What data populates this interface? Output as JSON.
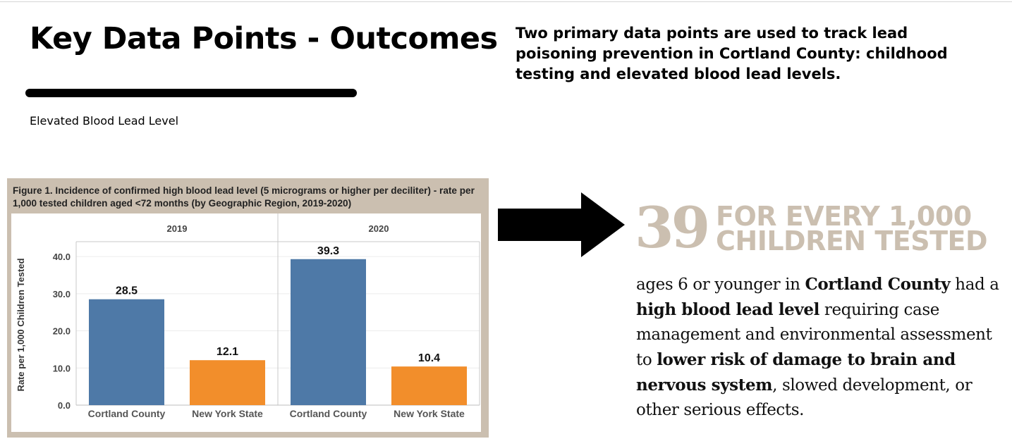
{
  "header": {
    "title": "Key Data Points - Outcomes",
    "section_label": "Elevated Blood Lead Level",
    "intro": "Two primary data points are used to track lead poisoning prevention in Cortland County: childhood testing and elevated blood lead levels."
  },
  "highlight": {
    "number": "39",
    "caption_line1": "FOR EVERY 1,000",
    "caption_line2": "CHILDREN TESTED",
    "color": "#cbbfb0"
  },
  "description": {
    "p1": "ages 6 or younger in ",
    "b1": "Cortland County",
    "p2": " had a ",
    "b2": "high blood lead level",
    "p3": " requiring case management and environmental assessment to ",
    "b3": "lower risk of damage to brain and nervous system",
    "p4": ", slowed development, or other serious effects."
  },
  "figure": {
    "caption": "Figure 1. Incidence of confirmed high blood lead level (5 micrograms or higher per deciliter) - rate per 1,000 tested children aged <72 months (by Geographic Region, 2019-2020)"
  },
  "chart_data": {
    "type": "bar",
    "panels": [
      "2019",
      "2020"
    ],
    "categories": [
      "Cortland County",
      "New York State"
    ],
    "series": [
      {
        "panel": "2019",
        "values": [
          28.5,
          12.1
        ]
      },
      {
        "panel": "2020",
        "values": [
          39.3,
          10.4
        ]
      }
    ],
    "value_labels": [
      "28.5",
      "12.1",
      "39.3",
      "10.4"
    ],
    "category_colors": [
      "#4e79a7",
      "#f28e2b"
    ],
    "ylabel": "Rate per 1,000 Children Tested",
    "yticks": [
      "0.0",
      "10.0",
      "20.0",
      "30.0",
      "40.0"
    ],
    "ylim": [
      0,
      44
    ],
    "grid": true
  }
}
